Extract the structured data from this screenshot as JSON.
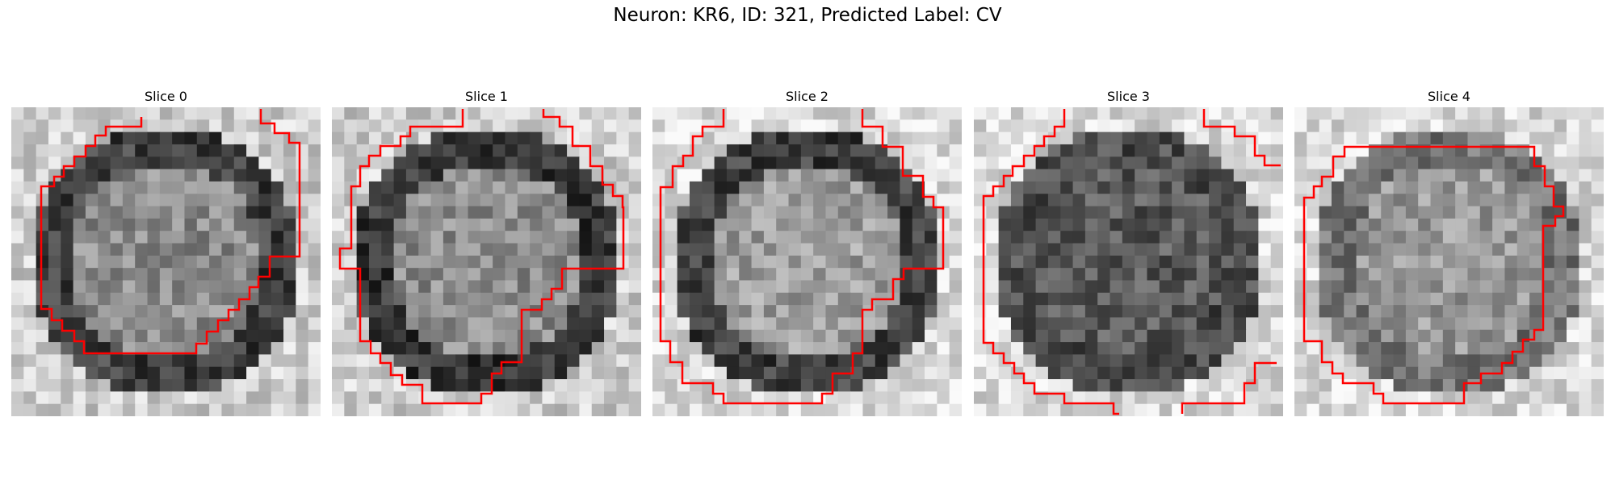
{
  "figure": {
    "title": "Neuron: KR6, ID: 321, Predicted Label: CV"
  },
  "panels": [
    {
      "title": "Slice 0"
    },
    {
      "title": "Slice 1"
    },
    {
      "title": "Slice 2"
    },
    {
      "title": "Slice 3"
    },
    {
      "title": "Slice 4"
    }
  ],
  "colors": {
    "contour": "#ff0000",
    "colormap": "grayscale"
  }
}
